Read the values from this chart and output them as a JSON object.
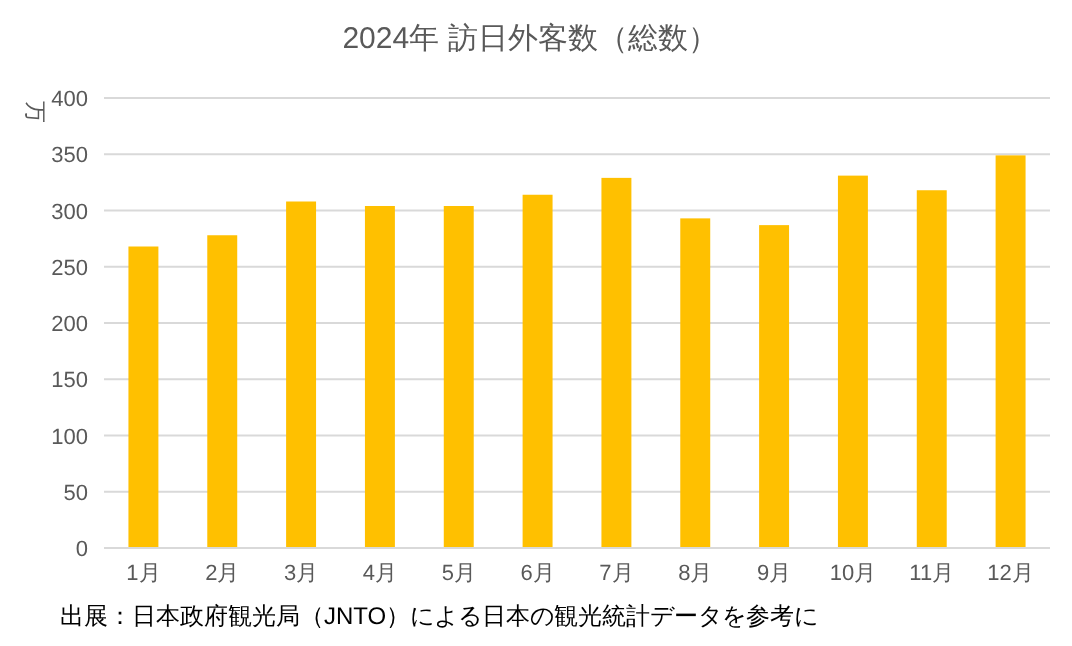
{
  "chart_data": {
    "type": "bar",
    "title": "2024年  訪日外客数（総数）",
    "ylabel": "万",
    "categories": [
      "1月",
      "2月",
      "3月",
      "4月",
      "5月",
      "6月",
      "7月",
      "8月",
      "9月",
      "10月",
      "11月",
      "12月"
    ],
    "values": [
      268,
      278,
      308,
      304,
      304,
      314,
      329,
      293,
      287,
      331,
      318,
      349
    ],
    "color": "#ffc000",
    "ylim": [
      0,
      400
    ],
    "yticks": [
      0,
      50,
      100,
      150,
      200,
      250,
      300,
      350,
      400
    ],
    "grid": "y",
    "annotations": [
      "出展：日本政府観光局（JNTO）による日本の観光統計データを参考に"
    ]
  }
}
